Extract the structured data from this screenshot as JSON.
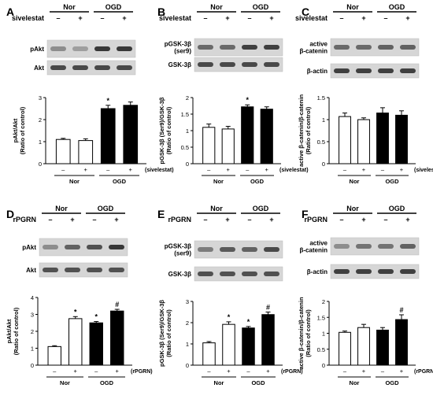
{
  "panels": [
    {
      "id": "A",
      "groups": [
        "Nor",
        "OGD"
      ],
      "treatment": "sivelestat",
      "signs": [
        "–",
        "+",
        "–",
        "+"
      ],
      "blots": [
        {
          "label": "pAkt",
          "intensity": [
            0.35,
            0.25,
            0.85,
            0.85
          ]
        },
        {
          "label": "Akt",
          "intensity": [
            0.75,
            0.75,
            0.75,
            0.75
          ]
        }
      ],
      "chart_data": {
        "type": "bar",
        "ylabel": "pAkt/Akt\n(Ratio of control)",
        "ylim": [
          0,
          3
        ],
        "yticks": [
          "0",
          "1",
          "2",
          "3"
        ],
        "categories": [
          "–",
          "+",
          "–",
          "+"
        ],
        "values": [
          1.1,
          1.05,
          2.5,
          2.65
        ],
        "errors": [
          0.05,
          0.08,
          0.15,
          0.15
        ],
        "fills": [
          "#ffffff",
          "#ffffff",
          "#000000",
          "#000000"
        ],
        "marks": [
          "",
          "",
          "*",
          ""
        ],
        "xlabel_suffix": "(sivelestat)",
        "group_labels": [
          "Nor",
          "OGD"
        ]
      }
    },
    {
      "id": "B",
      "groups": [
        "Nor",
        "OGD"
      ],
      "treatment": "sivelestat",
      "signs": [
        "–",
        "+",
        "–",
        "+"
      ],
      "blots": [
        {
          "label": "pGSK-3β\n(ser9)",
          "intensity": [
            0.55,
            0.55,
            0.8,
            0.8
          ]
        },
        {
          "label": "GSK-3β",
          "intensity": [
            0.75,
            0.75,
            0.75,
            0.75
          ]
        }
      ],
      "chart_data": {
        "type": "bar",
        "ylabel": "pGSK-3β (Ser9)/GSK-3β\n(Ratio of control)",
        "ylim": [
          0,
          2
        ],
        "yticks": [
          "0",
          "0.5",
          "1",
          "1.5",
          "2"
        ],
        "categories": [
          "–",
          "+",
          "–",
          "+"
        ],
        "values": [
          1.1,
          1.05,
          1.72,
          1.65
        ],
        "errors": [
          0.1,
          0.08,
          0.06,
          0.07
        ],
        "fills": [
          "#ffffff",
          "#ffffff",
          "#000000",
          "#000000"
        ],
        "marks": [
          "",
          "",
          "*",
          ""
        ],
        "xlabel_suffix": "(sivelestat)",
        "group_labels": [
          "Nor",
          "OGD"
        ]
      }
    },
    {
      "id": "C",
      "groups": [
        "Nor",
        "OGD"
      ],
      "treatment": "sivelestat",
      "signs": [
        "–",
        "+",
        "–",
        "+"
      ],
      "blots": [
        {
          "label": "active\nβ-catenin",
          "intensity": [
            0.55,
            0.55,
            0.6,
            0.6
          ]
        },
        {
          "label": "β-actin",
          "intensity": [
            0.8,
            0.8,
            0.8,
            0.8
          ]
        }
      ],
      "chart_data": {
        "type": "bar",
        "ylabel": "active β-catenin/β-catenin\n(Ratio of control)",
        "ylim": [
          0,
          1.5
        ],
        "yticks": [
          "0",
          "0.5",
          "1",
          "1.5"
        ],
        "categories": [
          "–",
          "+",
          "–",
          "+"
        ],
        "values": [
          1.07,
          1.0,
          1.15,
          1.1
        ],
        "errors": [
          0.08,
          0.04,
          0.12,
          0.1
        ],
        "fills": [
          "#ffffff",
          "#ffffff",
          "#000000",
          "#000000"
        ],
        "marks": [
          "",
          "",
          "",
          ""
        ],
        "xlabel_suffix": "(sivelestat)",
        "group_labels": [
          "Nor",
          "OGD"
        ]
      }
    },
    {
      "id": "D",
      "groups": [
        "Nor",
        "OGD"
      ],
      "treatment": "rPGRN",
      "signs": [
        "–",
        "+",
        "–",
        "+"
      ],
      "blots": [
        {
          "label": "pAkt",
          "intensity": [
            0.35,
            0.6,
            0.7,
            0.85
          ]
        },
        {
          "label": "Akt",
          "intensity": [
            0.7,
            0.7,
            0.7,
            0.7
          ]
        }
      ],
      "chart_data": {
        "type": "bar",
        "ylabel": "pAkt/Akt\n(Ratio of control)",
        "ylim": [
          0,
          4
        ],
        "yticks": [
          "0",
          "1",
          "2",
          "3",
          "4"
        ],
        "categories": [
          "–",
          "+",
          "–",
          "+"
        ],
        "values": [
          1.1,
          2.75,
          2.5,
          3.2
        ],
        "errors": [
          0.05,
          0.12,
          0.08,
          0.1
        ],
        "fills": [
          "#ffffff",
          "#ffffff",
          "#000000",
          "#000000"
        ],
        "marks": [
          "",
          "*",
          "*",
          "#"
        ],
        "xlabel_suffix": "(rPGRN)",
        "group_labels": [
          "Nor",
          "OGD"
        ]
      }
    },
    {
      "id": "E",
      "groups": [
        "Nor",
        "OGD"
      ],
      "treatment": "rPGRN",
      "signs": [
        "–",
        "+",
        "–",
        "+"
      ],
      "blots": [
        {
          "label": "pGSK-3β\n(ser9)",
          "intensity": [
            0.45,
            0.65,
            0.6,
            0.75
          ]
        },
        {
          "label": "GSK-3β",
          "intensity": [
            0.7,
            0.7,
            0.7,
            0.7
          ]
        }
      ],
      "chart_data": {
        "type": "bar",
        "ylabel": "pGSK-3β (Ser9)/GSK-3β\n(Ratio of control)",
        "ylim": [
          0,
          3
        ],
        "yticks": [
          "0",
          "1",
          "2",
          "3"
        ],
        "categories": [
          "–",
          "+",
          "–",
          "+"
        ],
        "values": [
          1.05,
          1.92,
          1.75,
          2.38
        ],
        "errors": [
          0.06,
          0.12,
          0.07,
          0.12
        ],
        "fills": [
          "#ffffff",
          "#ffffff",
          "#000000",
          "#000000"
        ],
        "marks": [
          "",
          "*",
          "*",
          "#"
        ],
        "xlabel_suffix": "(rPGRN)",
        "group_labels": [
          "Nor",
          "OGD"
        ]
      }
    },
    {
      "id": "F",
      "groups": [
        "Nor",
        "OGD"
      ],
      "treatment": "rPGRN",
      "signs": [
        "–",
        "+",
        "–",
        "+"
      ],
      "blots": [
        {
          "label": "active\nβ-catenin",
          "intensity": [
            0.35,
            0.5,
            0.5,
            0.6
          ]
        },
        {
          "label": "β-actin",
          "intensity": [
            0.8,
            0.8,
            0.8,
            0.8
          ]
        }
      ],
      "chart_data": {
        "type": "bar",
        "ylabel": "active β-catenin/β-catenin\n(Ratio of control)",
        "ylim": [
          0,
          2
        ],
        "yticks": [
          "0",
          "0.5",
          "1",
          "1.5",
          "2"
        ],
        "categories": [
          "–",
          "+",
          "–",
          "+"
        ],
        "values": [
          1.03,
          1.18,
          1.1,
          1.43
        ],
        "errors": [
          0.04,
          0.1,
          0.08,
          0.15
        ],
        "fills": [
          "#ffffff",
          "#ffffff",
          "#000000",
          "#000000"
        ],
        "marks": [
          "",
          "",
          "",
          "#"
        ],
        "xlabel_suffix": "(rPGRN)",
        "group_labels": [
          "Nor",
          "OGD"
        ]
      }
    }
  ]
}
